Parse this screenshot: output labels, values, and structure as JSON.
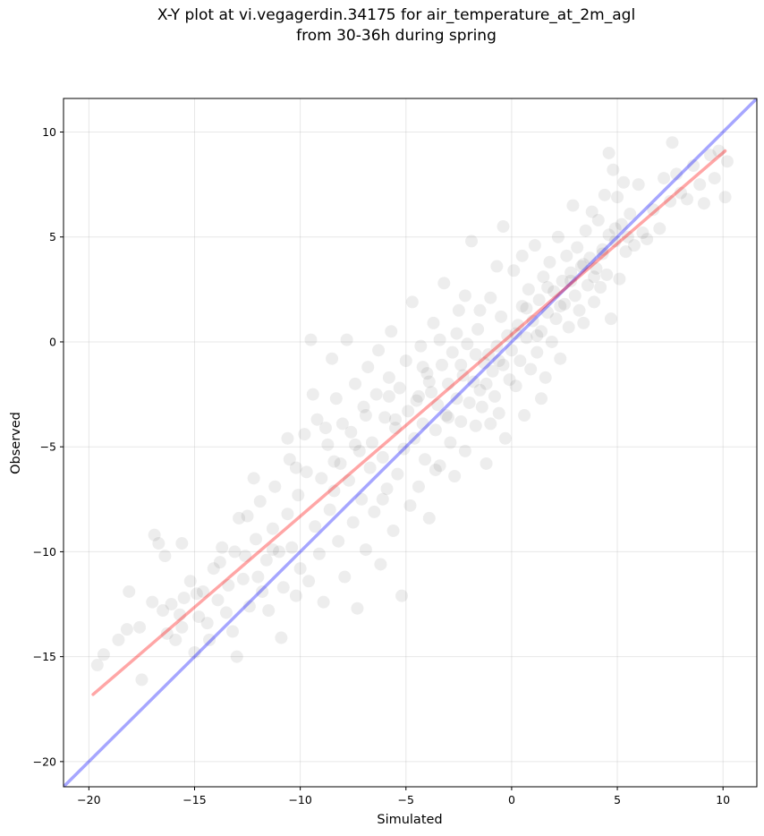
{
  "chart_data": {
    "type": "scatter",
    "title_line1": "X-Y plot at vi.vegagerdin.34175 for air_temperature_at_2m_agl",
    "title_line2": "from 30-36h during spring",
    "xlabel": "Simulated",
    "ylabel": "Observed",
    "xlim": [
      -21.2,
      11.6
    ],
    "ylim": [
      -21.2,
      11.6
    ],
    "xticks": [
      -20,
      -15,
      -10,
      -5,
      0,
      5,
      10
    ],
    "yticks": [
      -20,
      -15,
      -10,
      -5,
      0,
      5,
      10
    ],
    "tick_labels_x": [
      "−20",
      "−15",
      "−10",
      "−5",
      "0",
      "5",
      "10"
    ],
    "tick_labels_y": [
      "−20",
      "−15",
      "−10",
      "−5",
      "0",
      "5",
      "10"
    ],
    "grid": true,
    "point_color": "#000000",
    "point_alpha": 0.07,
    "identity_line": {
      "color": "#0000ff",
      "alpha": 0.35,
      "from": [
        -21.2,
        -21.2
      ],
      "to": [
        11.6,
        11.6
      ]
    },
    "fit_line": {
      "color": "#ff0000",
      "alpha": 0.35,
      "from": [
        -19.8,
        -16.8
      ],
      "to": [
        10.1,
        9.1
      ]
    },
    "points": [
      [
        -19.6,
        -15.4
      ],
      [
        -19.3,
        -14.9
      ],
      [
        -18.6,
        -14.2
      ],
      [
        -18.2,
        -13.7
      ],
      [
        -18.1,
        -11.9
      ],
      [
        -17.6,
        -13.6
      ],
      [
        -17.5,
        -16.1
      ],
      [
        -17.0,
        -12.4
      ],
      [
        -16.9,
        -9.2
      ],
      [
        -16.7,
        -9.6
      ],
      [
        -16.4,
        -10.2
      ],
      [
        -16.3,
        -13.9
      ],
      [
        -16.1,
        -12.5
      ],
      [
        -15.9,
        -14.2
      ],
      [
        -15.7,
        -13.0
      ],
      [
        -15.6,
        -9.6
      ],
      [
        -15.5,
        -12.2
      ],
      [
        -15.2,
        -11.4
      ],
      [
        -15.0,
        -14.8
      ],
      [
        -14.8,
        -13.1
      ],
      [
        -14.6,
        -11.9
      ],
      [
        -14.4,
        -13.4
      ],
      [
        -14.3,
        -14.2
      ],
      [
        -14.1,
        -10.8
      ],
      [
        -13.9,
        -12.3
      ],
      [
        -13.7,
        -9.8
      ],
      [
        -13.5,
        -12.9
      ],
      [
        -13.4,
        -11.6
      ],
      [
        -13.2,
        -13.8
      ],
      [
        -13.0,
        -15.0
      ],
      [
        -12.9,
        -8.4
      ],
      [
        -12.7,
        -11.3
      ],
      [
        -12.6,
        -10.2
      ],
      [
        -12.4,
        -12.6
      ],
      [
        -12.2,
        -6.5
      ],
      [
        -12.1,
        -9.4
      ],
      [
        -11.9,
        -7.6
      ],
      [
        -11.8,
        -11.9
      ],
      [
        -11.6,
        -10.4
      ],
      [
        -11.5,
        -12.8
      ],
      [
        -11.3,
        -8.9
      ],
      [
        -11.2,
        -6.9
      ],
      [
        -11.0,
        -10.0
      ],
      [
        -10.9,
        -14.1
      ],
      [
        -10.8,
        -11.7
      ],
      [
        -10.6,
        -8.2
      ],
      [
        -10.5,
        -5.6
      ],
      [
        -10.4,
        -9.8
      ],
      [
        -10.2,
        -12.1
      ],
      [
        -10.1,
        -7.3
      ],
      [
        -10.0,
        -10.8
      ],
      [
        -9.8,
        -4.4
      ],
      [
        -9.7,
        -6.2
      ],
      [
        -9.6,
        -11.4
      ],
      [
        -9.5,
        0.1
      ],
      [
        -9.3,
        -8.8
      ],
      [
        -9.2,
        -3.7
      ],
      [
        -9.1,
        -10.1
      ],
      [
        -9.0,
        -6.5
      ],
      [
        -8.9,
        -12.4
      ],
      [
        -8.7,
        -4.9
      ],
      [
        -8.6,
        -8.0
      ],
      [
        -8.5,
        -0.8
      ],
      [
        -8.4,
        -7.1
      ],
      [
        -8.3,
        -2.7
      ],
      [
        -8.2,
        -9.5
      ],
      [
        -8.1,
        -5.8
      ],
      [
        -8.0,
        -3.9
      ],
      [
        -7.9,
        -11.2
      ],
      [
        -7.8,
        0.1
      ],
      [
        -7.7,
        -6.6
      ],
      [
        -7.6,
        -4.3
      ],
      [
        -7.5,
        -8.6
      ],
      [
        -7.4,
        -2.0
      ],
      [
        -7.3,
        -12.7
      ],
      [
        -7.2,
        -5.2
      ],
      [
        -7.1,
        -7.5
      ],
      [
        -7.0,
        -3.1
      ],
      [
        -6.9,
        -9.9
      ],
      [
        -6.8,
        -1.2
      ],
      [
        -6.7,
        -6.0
      ],
      [
        -6.6,
        -4.8
      ],
      [
        -6.5,
        -8.1
      ],
      [
        -6.4,
        -2.5
      ],
      [
        -6.3,
        -0.4
      ],
      [
        -6.2,
        -10.6
      ],
      [
        -6.1,
        -5.5
      ],
      [
        -6.0,
        -3.6
      ],
      [
        -5.9,
        -7.0
      ],
      [
        -5.8,
        -1.7
      ],
      [
        -5.7,
        0.5
      ],
      [
        -5.6,
        -9.0
      ],
      [
        -5.5,
        -4.1
      ],
      [
        -5.4,
        -6.3
      ],
      [
        -5.3,
        -2.2
      ],
      [
        -5.2,
        -12.1
      ],
      [
        -5.1,
        -5.1
      ],
      [
        -5.0,
        -0.9
      ],
      [
        -4.9,
        -3.3
      ],
      [
        -4.8,
        -7.8
      ],
      [
        -4.7,
        1.9
      ],
      [
        -4.6,
        -4.6
      ],
      [
        -4.5,
        -2.8
      ],
      [
        -4.4,
        -6.9
      ],
      [
        -4.3,
        -0.2
      ],
      [
        -4.2,
        -3.9
      ],
      [
        -4.1,
        -5.6
      ],
      [
        -4.0,
        -1.5
      ],
      [
        -3.9,
        -8.4
      ],
      [
        -3.8,
        -2.4
      ],
      [
        -3.7,
        0.9
      ],
      [
        -3.6,
        -4.2
      ],
      [
        -3.5,
        -3.0
      ],
      [
        -3.4,
        -5.9
      ],
      [
        -3.3,
        -1.1
      ],
      [
        -3.2,
        2.8
      ],
      [
        -3.1,
        -3.5
      ],
      [
        -3.0,
        -2.0
      ],
      [
        -2.9,
        -4.8
      ],
      [
        -2.8,
        -0.5
      ],
      [
        -2.7,
        -6.4
      ],
      [
        -2.6,
        -2.7
      ],
      [
        -2.5,
        1.5
      ],
      [
        -2.4,
        -3.8
      ],
      [
        -2.3,
        -1.6
      ],
      [
        -2.2,
        -5.2
      ],
      [
        -2.1,
        -0.1
      ],
      [
        -2.0,
        -2.9
      ],
      [
        -1.9,
        4.8
      ],
      [
        -1.8,
        -1.9
      ],
      [
        -1.7,
        -4.0
      ],
      [
        -1.6,
        0.6
      ],
      [
        -1.5,
        -2.3
      ],
      [
        -1.4,
        -3.1
      ],
      [
        -1.3,
        -1.0
      ],
      [
        -1.2,
        -5.8
      ],
      [
        -1.1,
        -0.6
      ],
      [
        -1.0,
        2.1
      ],
      [
        -0.9,
        -1.4
      ],
      [
        -0.8,
        -2.6
      ],
      [
        -0.7,
        -0.2
      ],
      [
        -0.6,
        -3.4
      ],
      [
        -0.5,
        1.2
      ],
      [
        -0.4,
        -1.1
      ],
      [
        -0.3,
        -4.6
      ],
      [
        -0.2,
        0.3
      ],
      [
        -0.1,
        -1.8
      ],
      [
        0.0,
        -0.4
      ],
      [
        0.1,
        3.4
      ],
      [
        0.2,
        -2.1
      ],
      [
        0.3,
        0.8
      ],
      [
        0.4,
        -0.9
      ],
      [
        0.5,
        1.7
      ],
      [
        0.6,
        -3.5
      ],
      [
        0.7,
        0.2
      ],
      [
        0.8,
        2.5
      ],
      [
        0.9,
        -1.3
      ],
      [
        1.0,
        1.0
      ],
      [
        1.1,
        4.6
      ],
      [
        1.2,
        -0.5
      ],
      [
        1.3,
        2.0
      ],
      [
        1.4,
        0.5
      ],
      [
        1.5,
        3.1
      ],
      [
        1.6,
        -1.7
      ],
      [
        1.7,
        1.4
      ],
      [
        1.8,
        3.8
      ],
      [
        1.9,
        0.0
      ],
      [
        2.0,
        2.4
      ],
      [
        2.1,
        1.1
      ],
      [
        2.2,
        5.0
      ],
      [
        2.3,
        -0.8
      ],
      [
        2.4,
        2.9
      ],
      [
        2.5,
        1.8
      ],
      [
        2.6,
        4.1
      ],
      [
        2.7,
        0.7
      ],
      [
        2.8,
        3.3
      ],
      [
        2.9,
        6.5
      ],
      [
        3.0,
        2.2
      ],
      [
        3.1,
        4.5
      ],
      [
        3.2,
        1.5
      ],
      [
        3.3,
        3.6
      ],
      [
        3.4,
        0.9
      ],
      [
        3.5,
        5.3
      ],
      [
        3.6,
        2.7
      ],
      [
        3.7,
        4.0
      ],
      [
        3.8,
        6.2
      ],
      [
        3.9,
        1.9
      ],
      [
        4.0,
        3.5
      ],
      [
        4.1,
        5.8
      ],
      [
        4.2,
        2.6
      ],
      [
        4.3,
        4.4
      ],
      [
        4.4,
        7.0
      ],
      [
        4.5,
        3.2
      ],
      [
        4.6,
        5.1
      ],
      [
        4.7,
        1.1
      ],
      [
        4.8,
        8.2
      ],
      [
        4.9,
        4.8
      ],
      [
        5.0,
        6.9
      ],
      [
        5.1,
        3.0
      ],
      [
        5.2,
        5.6
      ],
      [
        5.3,
        7.6
      ],
      [
        5.4,
        4.3
      ],
      [
        5.6,
        6.1
      ],
      [
        5.8,
        4.6
      ],
      [
        6.0,
        7.5
      ],
      [
        6.2,
        5.2
      ],
      [
        6.4,
        4.9
      ],
      [
        6.7,
        6.3
      ],
      [
        7.0,
        5.4
      ],
      [
        7.2,
        7.8
      ],
      [
        7.5,
        6.7
      ],
      [
        7.8,
        8.0
      ],
      [
        8.0,
        7.1
      ],
      [
        8.3,
        6.8
      ],
      [
        8.6,
        8.4
      ],
      [
        8.9,
        7.5
      ],
      [
        9.1,
        6.6
      ],
      [
        9.4,
        8.9
      ],
      [
        9.6,
        7.8
      ],
      [
        9.8,
        9.1
      ],
      [
        10.1,
        6.9
      ],
      [
        10.2,
        8.6
      ],
      [
        7.6,
        9.5
      ],
      [
        4.6,
        9.0
      ],
      [
        0.5,
        4.1
      ],
      [
        -0.4,
        5.5
      ],
      [
        -2.2,
        2.2
      ],
      [
        -0.7,
        3.6
      ],
      [
        1.4,
        -2.7
      ],
      [
        -1.0,
        -3.9
      ],
      [
        -3.4,
        0.1
      ],
      [
        -2.6,
        0.4
      ],
      [
        -1.5,
        1.5
      ],
      [
        -4.2,
        -1.2
      ],
      [
        -5.8,
        -2.6
      ],
      [
        -3.6,
        -6.1
      ],
      [
        -6.1,
        -7.5
      ],
      [
        -8.4,
        -5.7
      ],
      [
        -9.4,
        -2.5
      ],
      [
        -10.6,
        -4.6
      ],
      [
        -11.3,
        -9.9
      ],
      [
        -12.0,
        -11.2
      ],
      [
        -13.8,
        -10.5
      ],
      [
        -14.9,
        -12.0
      ],
      [
        -15.6,
        -13.6
      ],
      [
        -16.5,
        -12.8
      ],
      [
        -13.1,
        -10.0
      ],
      [
        -12.5,
        -8.3
      ],
      [
        -10.2,
        -6.0
      ],
      [
        -8.8,
        -4.1
      ],
      [
        -7.4,
        -4.9
      ],
      [
        -6.9,
        -3.5
      ],
      [
        -5.5,
        -3.7
      ],
      [
        -4.4,
        -2.6
      ],
      [
        -3.9,
        -1.9
      ],
      [
        -3.0,
        -3.6
      ],
      [
        -2.4,
        -1.1
      ],
      [
        -1.7,
        -0.6
      ],
      [
        -1.2,
        -2.0
      ],
      [
        -0.6,
        -0.9
      ],
      [
        0.2,
        0.4
      ],
      [
        0.7,
        1.6
      ],
      [
        1.2,
        0.3
      ],
      [
        1.7,
        2.6
      ],
      [
        2.3,
        1.7
      ],
      [
        2.8,
        2.9
      ],
      [
        3.4,
        3.7
      ],
      [
        3.9,
        3.1
      ],
      [
        4.3,
        4.2
      ],
      [
        4.9,
        5.4
      ],
      [
        5.5,
        5.0
      ]
    ]
  }
}
